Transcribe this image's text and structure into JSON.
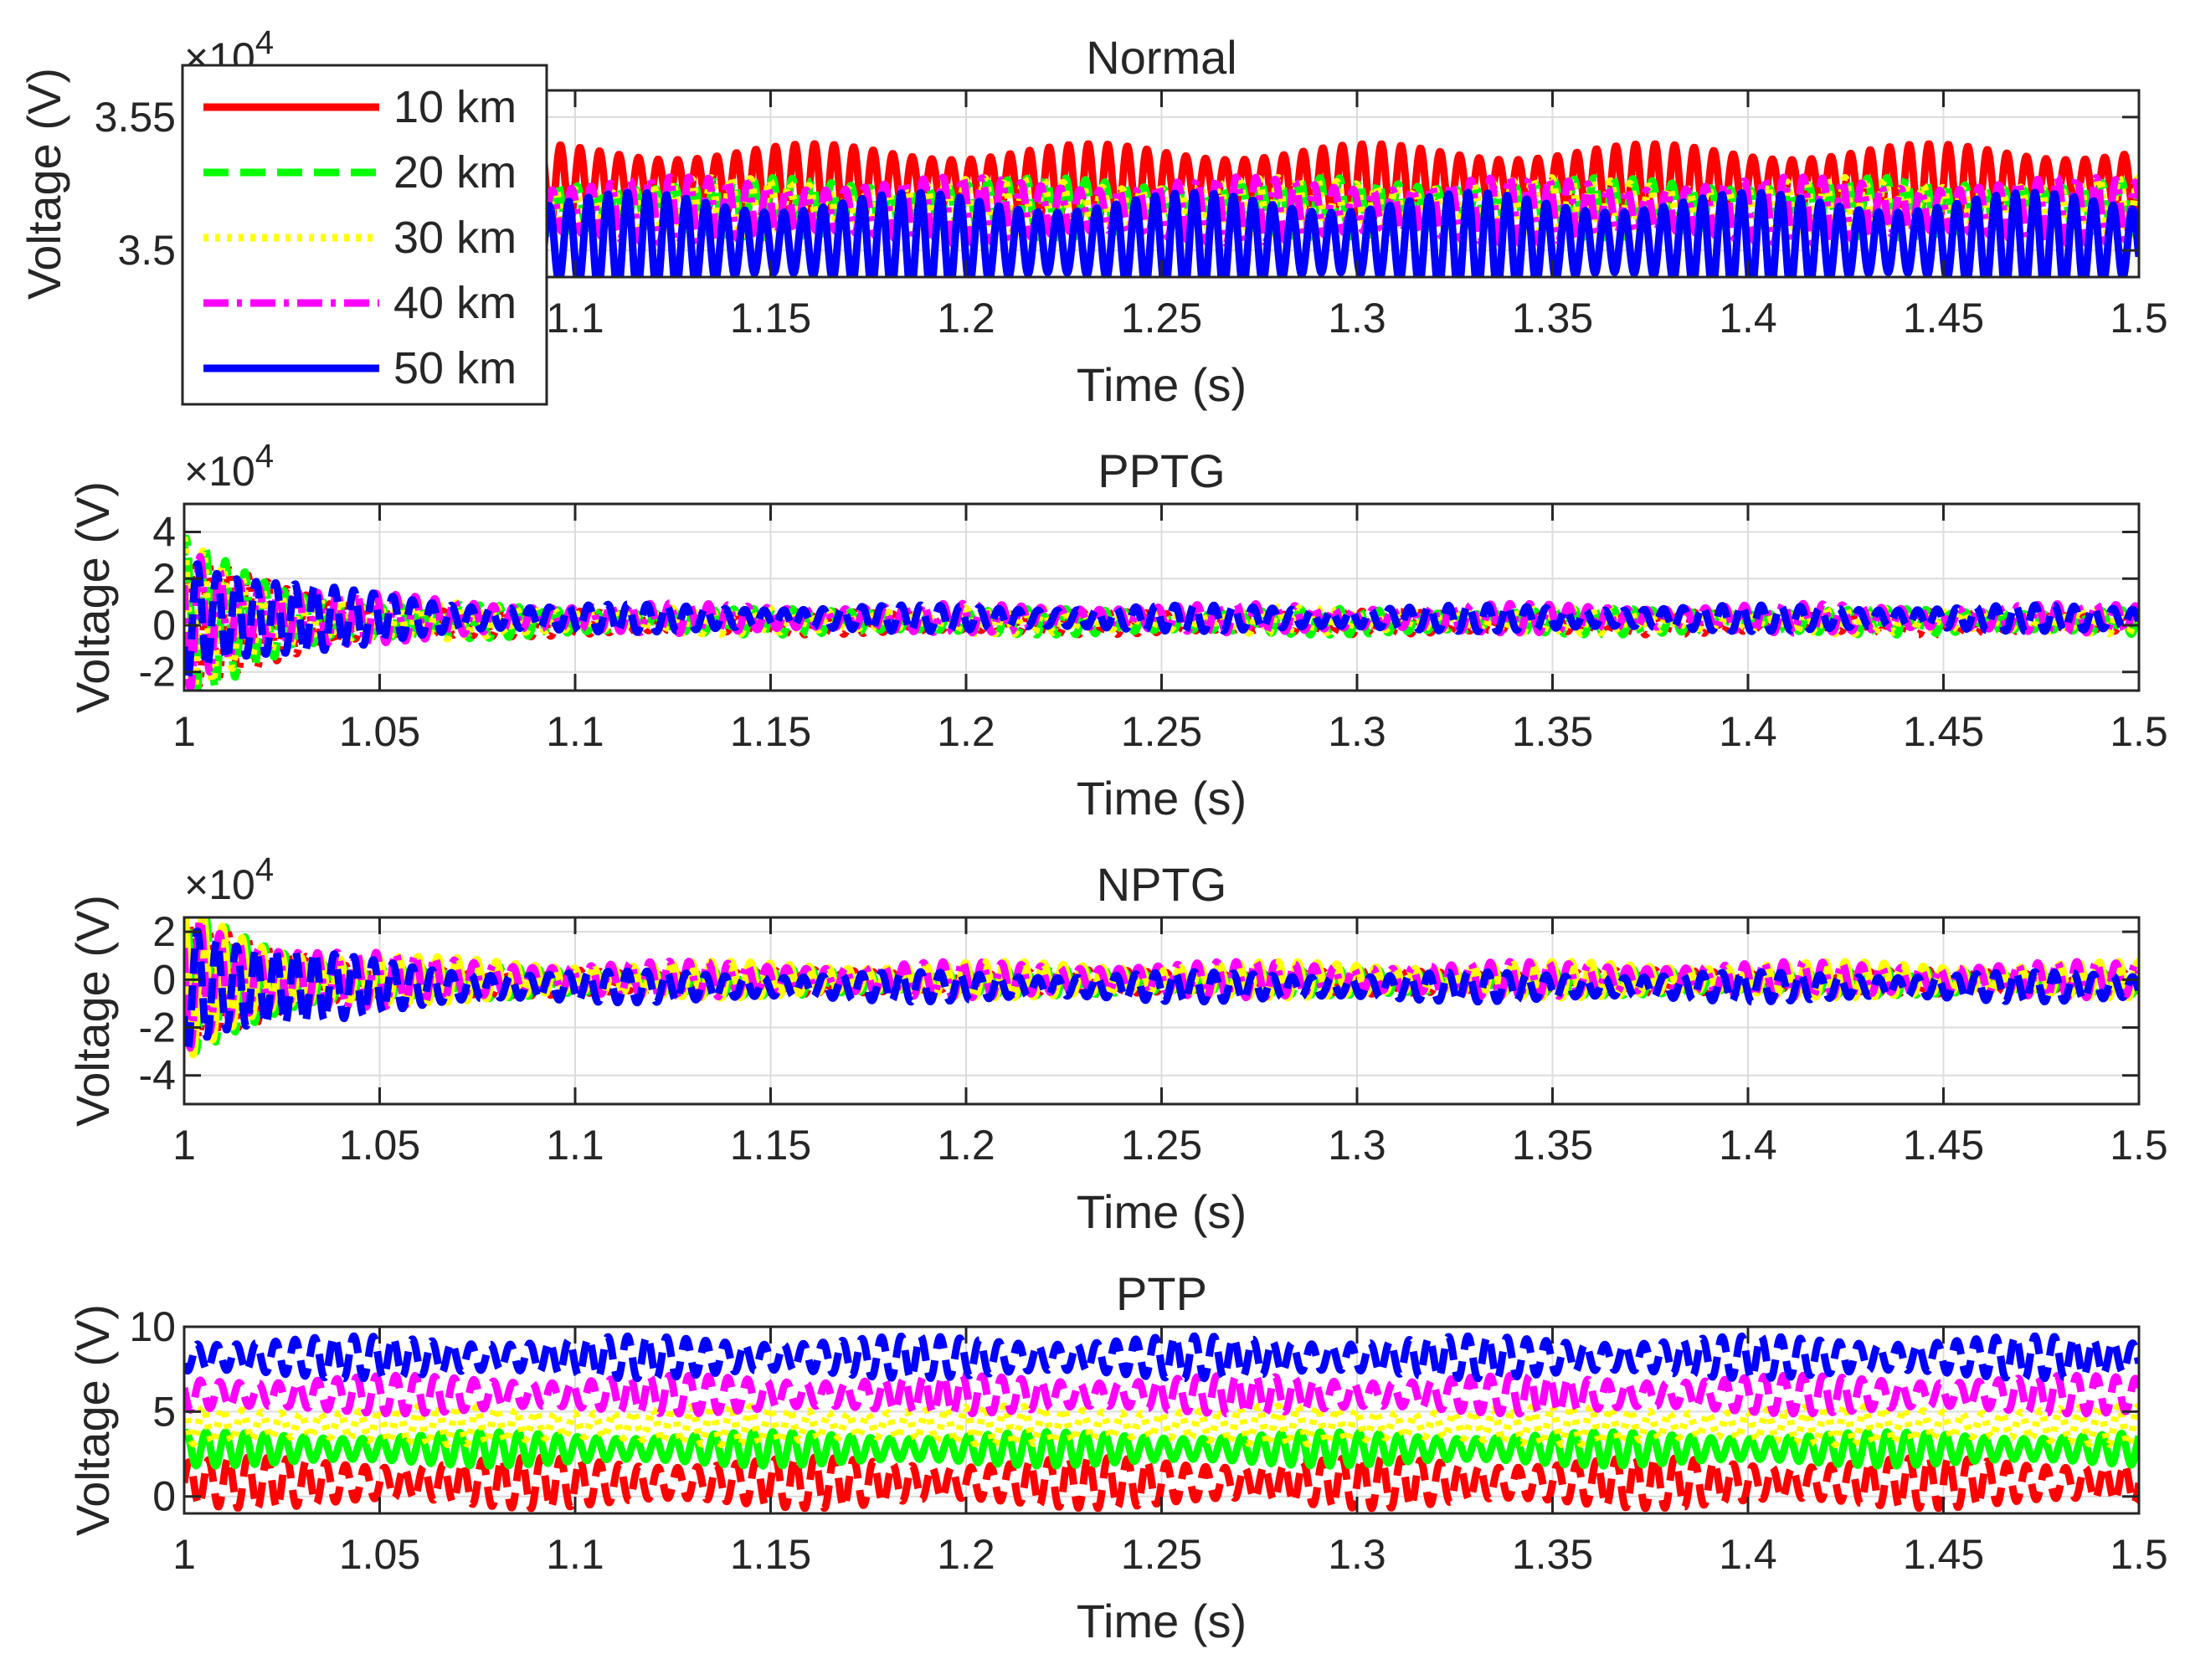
{
  "chart_data": [
    {
      "type": "line",
      "title": "Normal",
      "xlabel": "Time (s)",
      "ylabel": "Voltage (V)",
      "exponent": "4",
      "xlim": [
        1.0,
        1.5
      ],
      "ylim": [
        34900,
        35600
      ],
      "xticks": [
        1.1,
        1.15,
        1.2,
        1.25,
        1.3,
        1.35,
        1.4,
        1.45,
        1.5
      ],
      "xtick_labels": [
        "1.1",
        "1.15",
        "1.2",
        "1.25",
        "1.3",
        "1.35",
        "1.4",
        "1.45",
        "1.5"
      ],
      "yticks": [
        35000,
        35500
      ],
      "ytick_labels": [
        "3.5",
        "3.55"
      ],
      "grid": true,
      "legend": {
        "position": "top-left",
        "entries": [
          "10 km",
          "20 km",
          "30 km",
          "40 km",
          "50 km"
        ]
      },
      "series": [
        {
          "name": "10 km",
          "color": "#ff0000",
          "style": "solid",
          "center": 35250,
          "amplitude": 120,
          "osc_per_unit": 200,
          "start_amplitude": 160
        },
        {
          "name": "20 km",
          "color": "#00ff00",
          "style": "dashed",
          "center": 35160,
          "amplitude": 90,
          "osc_per_unit": 200,
          "start_amplitude": 120
        },
        {
          "name": "30 km",
          "color": "#ffff00",
          "style": "dotted",
          "center": 35160,
          "amplitude": 90,
          "osc_per_unit": 200,
          "start_amplitude": 120
        },
        {
          "name": "40 km",
          "color": "#ff00ff",
          "style": "dashdot",
          "center": 35150,
          "amplitude": 100,
          "osc_per_unit": 200,
          "start_amplitude": 130
        },
        {
          "name": "50 km",
          "color": "#0000ff",
          "style": "solid",
          "center": 35030,
          "amplitude": 150,
          "osc_per_unit": 200,
          "start_amplitude": 180
        }
      ]
    },
    {
      "type": "line",
      "title": "PPTG",
      "xlabel": "Time (s)",
      "ylabel": "Voltage (V)",
      "exponent": "4",
      "xlim": [
        1.0,
        1.5
      ],
      "ylim": [
        -28000,
        52000
      ],
      "xticks": [
        1.0,
        1.05,
        1.1,
        1.15,
        1.2,
        1.25,
        1.3,
        1.35,
        1.4,
        1.45,
        1.5
      ],
      "xtick_labels": [
        "1",
        "1.05",
        "1.1",
        "1.15",
        "1.2",
        "1.25",
        "1.3",
        "1.35",
        "1.4",
        "1.45",
        "1.5"
      ],
      "yticks": [
        -20000,
        0,
        20000,
        40000
      ],
      "ytick_labels": [
        "-2",
        "0",
        "2",
        "4"
      ],
      "grid": true,
      "series": [
        {
          "name": "10 km",
          "color": "#ff0000",
          "style": "dotted",
          "center": 1000,
          "amplitude": 4000,
          "osc_per_unit": 200,
          "start_amplitude": 28000
        },
        {
          "name": "20 km",
          "color": "#00ff00",
          "style": "dashed",
          "center": 1500,
          "amplitude": 4500,
          "osc_per_unit": 200,
          "start_amplitude": 30000
        },
        {
          "name": "30 km",
          "color": "#ffff00",
          "style": "dotted",
          "center": 2000,
          "amplitude": 4500,
          "osc_per_unit": 200,
          "start_amplitude": 30000
        },
        {
          "name": "40 km",
          "color": "#ff00ff",
          "style": "dashdot",
          "center": 3000,
          "amplitude": 5000,
          "osc_per_unit": 200,
          "start_amplitude": 32000
        },
        {
          "name": "50 km",
          "color": "#0000ff",
          "style": "dashed",
          "center": 3000,
          "amplitude": 4500,
          "osc_per_unit": 200,
          "start_amplitude": 34000
        }
      ]
    },
    {
      "type": "line",
      "title": "NPTG",
      "xlabel": "Time (s)",
      "ylabel": "Voltage (V)",
      "exponent": "4",
      "xlim": [
        1.0,
        1.5
      ],
      "ylim": [
        -52000,
        26000
      ],
      "xticks": [
        1.0,
        1.05,
        1.1,
        1.15,
        1.2,
        1.25,
        1.3,
        1.35,
        1.4,
        1.45,
        1.5
      ],
      "xtick_labels": [
        "1",
        "1.05",
        "1.1",
        "1.15",
        "1.2",
        "1.25",
        "1.3",
        "1.35",
        "1.4",
        "1.45",
        "1.5"
      ],
      "yticks": [
        -40000,
        -20000,
        0,
        20000
      ],
      "ytick_labels": [
        "-4",
        "-2",
        "0",
        "2"
      ],
      "grid": true,
      "series": [
        {
          "name": "10 km",
          "color": "#ff0000",
          "style": "dotted",
          "center": -1000,
          "amplitude": 4000,
          "osc_per_unit": 200,
          "start_amplitude": 24000
        },
        {
          "name": "20 km",
          "color": "#00ff00",
          "style": "dashed",
          "center": -1000,
          "amplitude": 4500,
          "osc_per_unit": 200,
          "start_amplitude": 26000
        },
        {
          "name": "30 km",
          "color": "#ffff00",
          "style": "solid",
          "center": 0,
          "amplitude": 6000,
          "osc_per_unit": 200,
          "start_amplitude": 28000
        },
        {
          "name": "40 km",
          "color": "#ff00ff",
          "style": "dashdot",
          "center": 0,
          "amplitude": 6000,
          "osc_per_unit": 200,
          "start_amplitude": 30000
        },
        {
          "name": "50 km",
          "color": "#0000ff",
          "style": "dashed",
          "center": -3000,
          "amplitude": 5000,
          "osc_per_unit": 200,
          "start_amplitude": 34000
        }
      ]
    },
    {
      "type": "line",
      "title": "PTP",
      "xlabel": "Time (s)",
      "ylabel": "Voltage (V)",
      "exponent": "",
      "xlim": [
        1.0,
        1.5
      ],
      "ylim": [
        -1,
        10
      ],
      "xticks": [
        1.0,
        1.05,
        1.1,
        1.15,
        1.2,
        1.25,
        1.3,
        1.35,
        1.4,
        1.45,
        1.5
      ],
      "xtick_labels": [
        "1",
        "1.05",
        "1.1",
        "1.15",
        "1.2",
        "1.25",
        "1.3",
        "1.35",
        "1.4",
        "1.45",
        "1.5"
      ],
      "yticks": [
        0,
        5,
        10
      ],
      "ytick_labels": [
        "0",
        "5",
        "10"
      ],
      "grid": true,
      "series": [
        {
          "name": "10 km",
          "color": "#ff0000",
          "style": "dashed",
          "center": 0.8,
          "amplitude": 1.2,
          "osc_per_unit": 200,
          "start_amplitude": 1.2
        },
        {
          "name": "20 km",
          "color": "#00ff00",
          "style": "solid",
          "center": 2.8,
          "amplitude": 0.8,
          "osc_per_unit": 200,
          "start_amplitude": 0.8
        },
        {
          "name": "30 km",
          "color": "#ffff00",
          "style": "dotted",
          "center": 4.2,
          "amplitude": 0.9,
          "osc_per_unit": 200,
          "start_amplitude": 0.9
        },
        {
          "name": "40 km",
          "color": "#ff00ff",
          "style": "dashed",
          "center": 6.0,
          "amplitude": 0.9,
          "osc_per_unit": 200,
          "start_amplitude": 0.9
        },
        {
          "name": "50 km",
          "color": "#0000ff",
          "style": "dashed",
          "center": 8.2,
          "amplitude": 1.0,
          "osc_per_unit": 200,
          "start_amplitude": 1.0
        }
      ]
    }
  ]
}
